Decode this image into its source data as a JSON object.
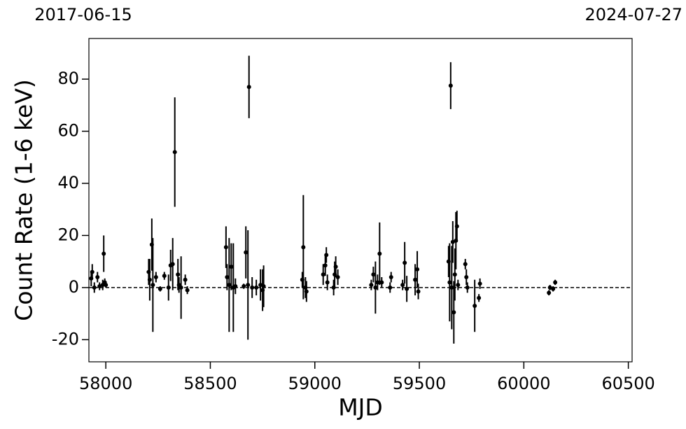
{
  "chart_data": {
    "type": "errorbar-scatter",
    "xlabel": "MJD",
    "ylabel": "Count Rate (1-6 keV)",
    "xlim": [
      57919,
      60518
    ],
    "ylim": [
      -28.5,
      95.6
    ],
    "xticks": [
      58000,
      58500,
      59000,
      59500,
      60000,
      60500
    ],
    "yticks": [
      -20,
      0,
      20,
      40,
      60,
      80
    ],
    "x2ticks": [
      {
        "value": 57919,
        "label": "2017-06-15"
      },
      {
        "value": 60518,
        "label": "2024-07-27"
      }
    ],
    "hline": 0,
    "color": "#000000",
    "x": [
      57930,
      57935,
      57945,
      57960,
      57970,
      57985,
      57990,
      57995,
      58000,
      58205,
      58210,
      58220,
      58225,
      58240,
      58260,
      58280,
      58300,
      58310,
      58320,
      58330,
      58345,
      58350,
      58360,
      58380,
      58390,
      58575,
      58580,
      58590,
      58600,
      58610,
      58620,
      58660,
      58670,
      58680,
      58685,
      58700,
      58720,
      58740,
      58750,
      58755,
      58940,
      58945,
      58955,
      58960,
      59040,
      59050,
      59055,
      59060,
      59090,
      59095,
      59100,
      59110,
      59270,
      59280,
      59290,
      59300,
      59310,
      59320,
      59360,
      59365,
      59420,
      59430,
      59440,
      59480,
      59490,
      59495,
      59640,
      59645,
      59650,
      59655,
      59660,
      59665,
      59670,
      59675,
      59680,
      59685,
      59720,
      59725,
      59730,
      59765,
      59785,
      59790,
      60120,
      60125,
      60140,
      60150
    ],
    "values": [
      3.5,
      6,
      0,
      4,
      0.5,
      1,
      13,
      2,
      1,
      6,
      3,
      16.5,
      1,
      4,
      -0.5,
      4.5,
      0,
      8.5,
      9,
      52,
      5,
      1,
      0,
      3,
      -1,
      15.5,
      4,
      1,
      8,
      0,
      0.5,
      0.5,
      13.5,
      1,
      77,
      0,
      0,
      1,
      -1,
      0.5,
      3,
      15.5,
      0,
      -1.5,
      5,
      8.5,
      12.5,
      2,
      0,
      5,
      8,
      4,
      1,
      5,
      0,
      2,
      13,
      2,
      0,
      4,
      1,
      9.5,
      -0.5,
      3,
      7,
      -1.5,
      10,
      2,
      77.5,
      0,
      17.5,
      -9.5,
      5,
      18,
      23.5,
      1,
      9,
      4,
      0,
      -7,
      -4,
      1.5,
      -2,
      0,
      -0.5,
      2
    ],
    "errors": [
      3,
      3,
      2,
      2,
      1.5,
      2,
      7,
      1.5,
      1,
      5,
      8,
      10,
      18,
      2,
      1,
      1.5,
      5,
      6,
      10,
      21,
      6,
      3,
      12,
      2,
      1.5,
      8,
      5,
      18,
      9,
      17,
      3,
      1,
      10,
      21,
      12,
      4,
      3,
      6,
      8,
      8,
      3,
      20,
      4,
      4,
      4,
      4,
      3,
      3,
      3,
      5,
      4,
      3,
      2,
      3,
      10,
      3,
      12,
      2,
      2,
      2,
      2,
      8,
      5,
      6,
      7,
      3,
      6,
      15,
      9,
      16,
      8,
      12,
      10,
      11,
      6,
      2,
      2,
      3,
      2,
      10,
      1.5,
      2,
      1,
      1,
      1,
      1
    ]
  }
}
